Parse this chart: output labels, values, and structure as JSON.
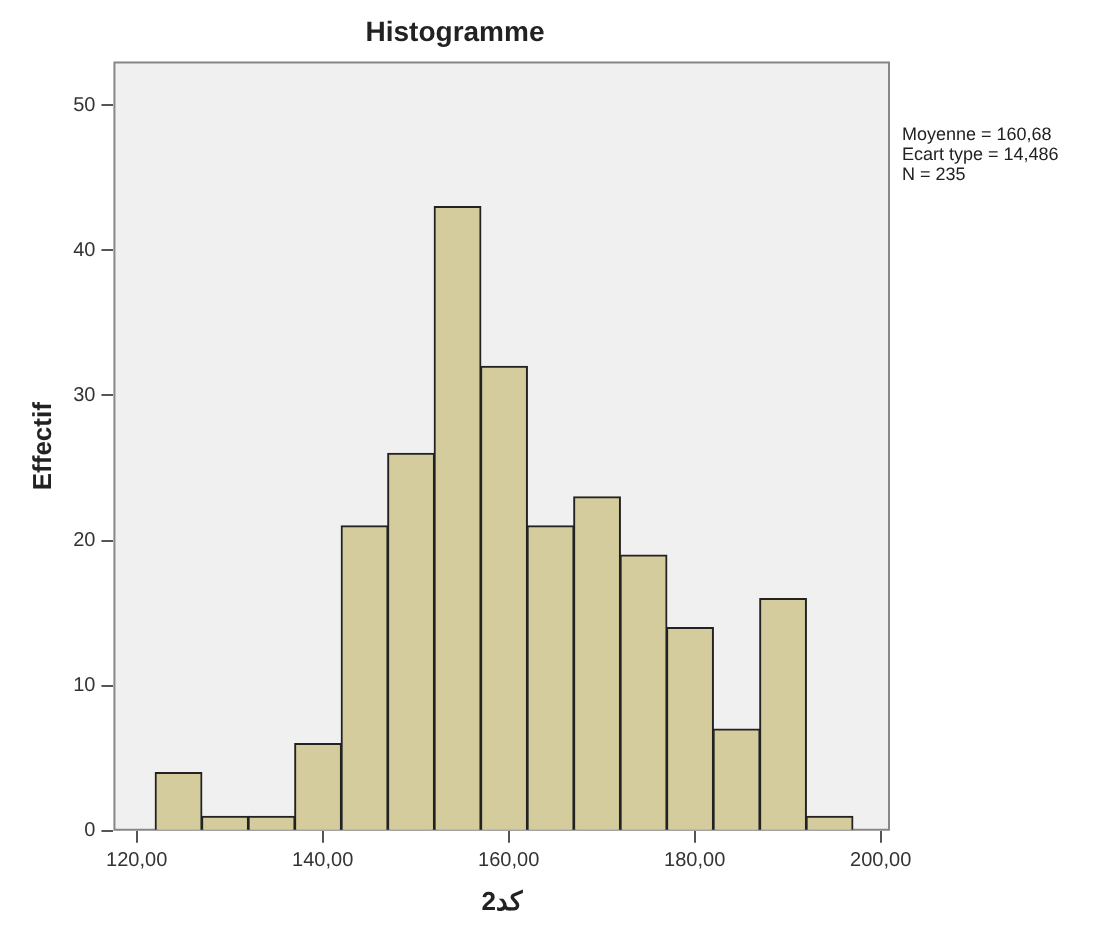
{
  "chart_data": {
    "type": "histogram",
    "title": "Histogramme",
    "xlabel": "2كد",
    "ylabel": "Effectif",
    "bins": [
      122,
      127,
      132,
      137,
      142,
      147,
      152,
      157,
      162,
      167,
      172,
      177,
      182,
      187,
      192,
      197
    ],
    "values": [
      4,
      1,
      1,
      6,
      21,
      26,
      43,
      32,
      21,
      23,
      19,
      14,
      7,
      16,
      1
    ],
    "color": "#d4cc9c",
    "xlim": [
      117.5,
      201
    ],
    "xticks": [
      {
        "value": 120,
        "label": "120,00"
      },
      {
        "value": 140,
        "label": "140,00"
      },
      {
        "value": 160,
        "label": "160,00"
      },
      {
        "value": 180,
        "label": "180,00"
      },
      {
        "value": 200,
        "label": "200,00"
      }
    ],
    "ylim": [
      0,
      53
    ],
    "yticks": [
      0,
      10,
      20,
      30,
      40,
      50
    ],
    "grid": false,
    "legend": false,
    "annotations": [
      "Moyenne = 160,68",
      "Ecart type = 14,486",
      "N = 235"
    ]
  }
}
